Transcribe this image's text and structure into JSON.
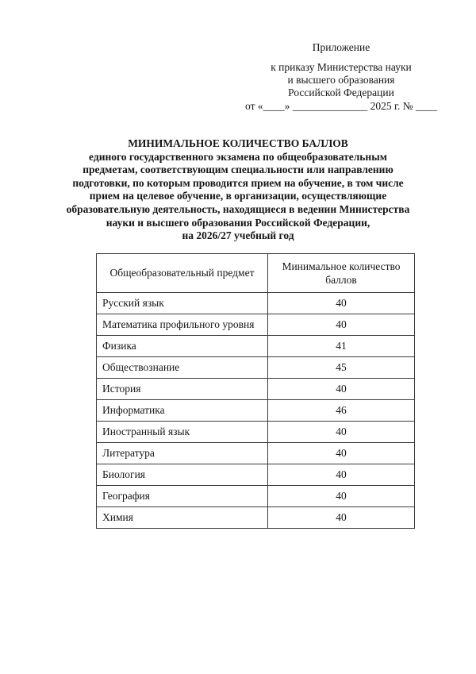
{
  "document": {
    "header": {
      "lines": [
        "Приложение",
        "к приказу Министерства науки",
        "и высшего образования",
        "Российской Федерации",
        "от «____» ______________ 2025 г. № ____"
      ]
    },
    "title": {
      "lines": [
        "МИНИМАЛЬНОЕ КОЛИЧЕСТВО БАЛЛОВ",
        "единого государственного экзамена по общеобразовательным",
        "предметам, соответствующим специальности или направлению",
        "подготовки, по которым проводится прием на обучение, в том числе",
        "прием на целевое обучение, в организации, осуществляющие",
        "образовательную деятельность, находящиеся в ведении Министерства",
        "науки и высшего образования Российской Федерации,",
        "на 2026/27 учебный год"
      ]
    },
    "table": {
      "headers": {
        "subject": "Общеобразовательный предмет",
        "score": "Минимальное количество баллов"
      },
      "rows": [
        {
          "subject": "Русский язык",
          "score": "40"
        },
        {
          "subject": "Математика профильного уровня",
          "score": "40"
        },
        {
          "subject": "Физика",
          "score": "41"
        },
        {
          "subject": "Обществознание",
          "score": "45"
        },
        {
          "subject": "История",
          "score": "40"
        },
        {
          "subject": "Информатика",
          "score": "46"
        },
        {
          "subject": "Иностранный язык",
          "score": "40"
        },
        {
          "subject": "Литература",
          "score": "40"
        },
        {
          "subject": "Биология",
          "score": "40"
        },
        {
          "subject": "География",
          "score": "40"
        },
        {
          "subject": "Химия",
          "score": "40"
        }
      ]
    }
  }
}
